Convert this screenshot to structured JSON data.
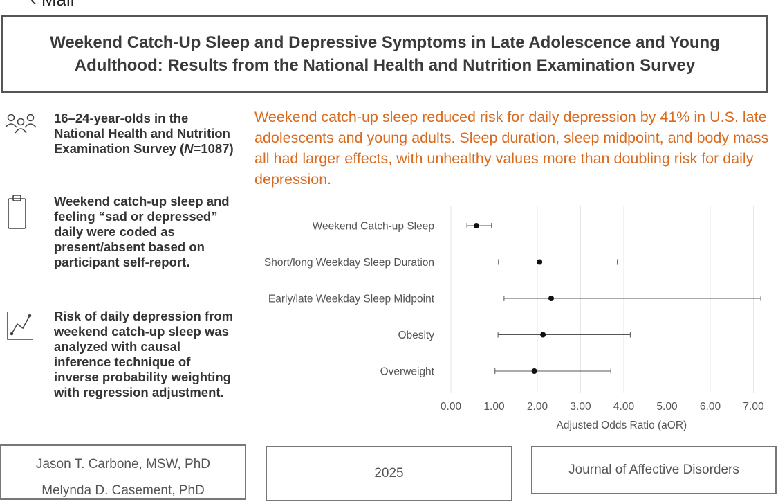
{
  "status": {
    "back_label": "‹ Mail"
  },
  "title": "Weekend Catch-Up Sleep and Depressive Symptoms in Late Adolescence and Young Adulthood: Results from the National Health and Nutrition Examination Survey",
  "sidebar": {
    "items": [
      {
        "icon": "people-icon",
        "text_before": "16–24-year-olds in the National Health and Nutrition Examination Survey (",
        "n_label": "N",
        "text_after": "=1087)"
      },
      {
        "icon": "clipboard-icon",
        "text": "Weekend catch-up sleep and feeling “sad or depressed” daily were coded as present/absent based on participant self-report."
      },
      {
        "icon": "line-chart-icon",
        "text": "Risk of daily depression from weekend catch-up sleep was analyzed with causal inference technique of inverse probability weighting with regression adjustment."
      }
    ]
  },
  "finding": "Weekend catch-up sleep reduced risk for daily depression by 41% in U.S. late adolescents and young adults. Sleep duration, sleep midpoint, and body mass all had larger effects, with unhealthy values more than doubling risk for daily depression.",
  "chart_data": {
    "type": "scatter",
    "subtype": "forest-plot",
    "title": "",
    "xlabel": "Adjusted Odds Ratio (aOR)",
    "ylabel": "",
    "xlim": [
      0,
      7.25
    ],
    "xticks": [
      0,
      1,
      2,
      3,
      4,
      5,
      6,
      7
    ],
    "xtick_labels": [
      "0.00",
      "1.00",
      "2.00",
      "3.00",
      "4.00",
      "5.00",
      "6.00",
      "7.00"
    ],
    "grid": "vertical",
    "categories": [
      "Weekend Catch-up Sleep",
      "Short/long Weekday Sleep Duration",
      "Early/late Weekday Sleep Midpoint",
      "Obesity",
      "Overweight"
    ],
    "estimates": [
      0.59,
      2.05,
      2.32,
      2.13,
      1.93
    ],
    "ci_lower": [
      0.37,
      1.1,
      1.23,
      1.09,
      1.02
    ],
    "ci_upper": [
      0.94,
      3.85,
      7.17,
      4.15,
      3.7
    ]
  },
  "footer": {
    "authors": [
      "Jason T. Carbone, MSW, PhD",
      "Melynda D. Casement, PhD"
    ],
    "year": "2025",
    "journal": "Journal of Affective Disorders"
  },
  "colors": {
    "accent": "#d96a1e",
    "border": "#555555",
    "text": "#333333"
  }
}
